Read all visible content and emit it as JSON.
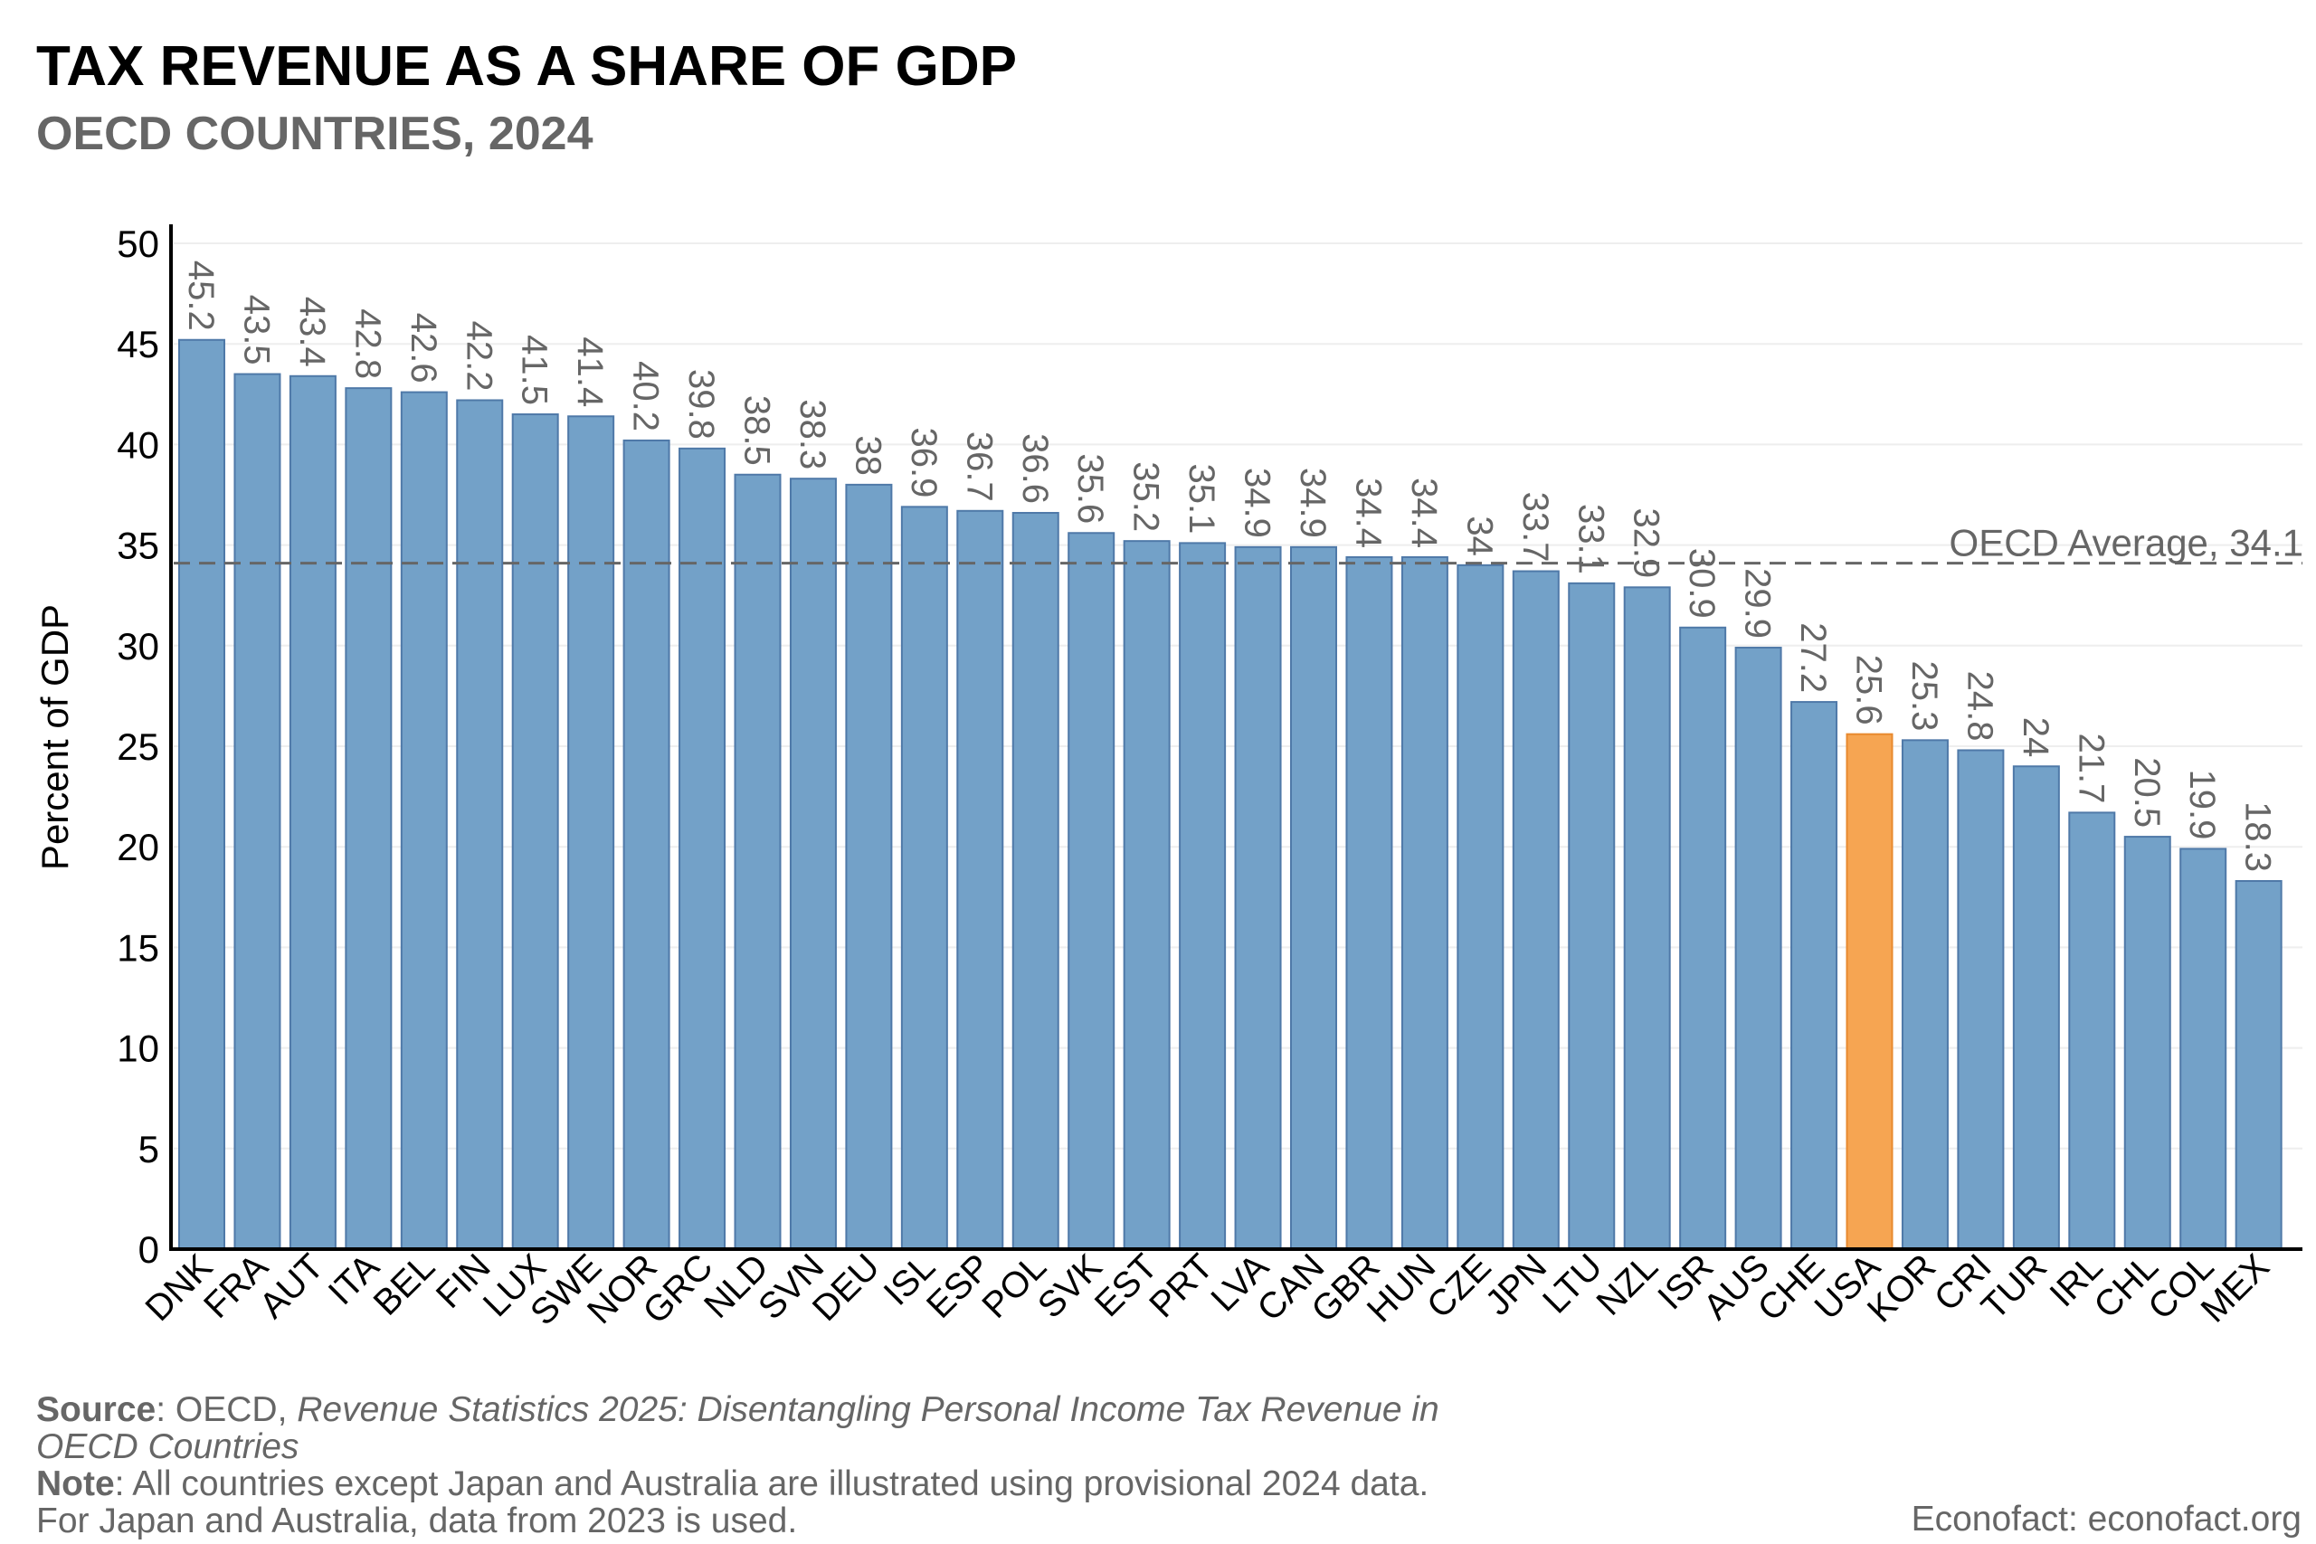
{
  "chart_data": {
    "type": "bar",
    "title": "TAX REVENUE AS A SHARE OF GDP",
    "subtitle": "OECD COUNTRIES, 2024",
    "xlabel": "",
    "ylabel": "Percent of GDP",
    "ylim": [
      0,
      50
    ],
    "yticks": [
      0,
      5,
      10,
      15,
      20,
      25,
      30,
      35,
      40,
      45,
      50
    ],
    "grid": "horizontal",
    "categories": [
      "DNK",
      "FRA",
      "AUT",
      "ITA",
      "BEL",
      "FIN",
      "LUX",
      "SWE",
      "NOR",
      "GRC",
      "NLD",
      "SVN",
      "DEU",
      "ISL",
      "ESP",
      "POL",
      "SVK",
      "EST",
      "PRT",
      "LVA",
      "CAN",
      "GBR",
      "HUN",
      "CZE",
      "JPN",
      "LTU",
      "NZL",
      "ISR",
      "AUS",
      "CHE",
      "USA",
      "KOR",
      "CRI",
      "TUR",
      "IRL",
      "CHL",
      "COL",
      "MEX"
    ],
    "values": [
      45.2,
      43.5,
      43.4,
      42.8,
      42.6,
      42.2,
      41.5,
      41.4,
      40.2,
      39.8,
      38.5,
      38.3,
      38,
      36.9,
      36.7,
      36.6,
      35.6,
      35.2,
      35.1,
      34.9,
      34.9,
      34.4,
      34.4,
      34,
      33.7,
      33.1,
      32.9,
      30.9,
      29.9,
      27.2,
      25.6,
      25.3,
      24.8,
      24,
      21.7,
      20.5,
      19.9,
      18.3
    ],
    "data_labels": [
      "45.2",
      "43.5",
      "43.4",
      "42.8",
      "42.6",
      "42.2",
      "41.5",
      "41.4",
      "40.2",
      "39.8",
      "38.5",
      "38.3",
      "38",
      "36.9",
      "36.7",
      "36.6",
      "35.6",
      "35.2",
      "35.1",
      "34.9",
      "34.9",
      "34.4",
      "34.4",
      "34",
      "33.7",
      "33.1",
      "32.9",
      "30.9",
      "29.9",
      "27.2",
      "25.6",
      "25.3",
      "24.8",
      "24",
      "21.7",
      "20.5",
      "19.9",
      "18.3"
    ],
    "highlight": "USA",
    "colors": {
      "bar": "#73a1c8",
      "bar_edge": "#4f79a8",
      "highlight": "#f6a552",
      "highlight_edge": "#e8892e",
      "label": "#666666",
      "average_line": "#666666"
    },
    "reference_line": {
      "value": 34.1,
      "label": "OECD Average, 34.1",
      "style": "dashed"
    }
  },
  "footer": {
    "source_label": "Source",
    "source_text": ": OECD, ",
    "source_title": "Revenue Statistics 2025: Disentangling Personal Income Tax Revenue in OECD Countries",
    "note_label": "Note",
    "note_text": ": All countries except Japan and Australia are illustrated using provisional 2024 data. For Japan and Australia, data from 2023 is used.",
    "credit": "Econofact: econofact.org"
  }
}
